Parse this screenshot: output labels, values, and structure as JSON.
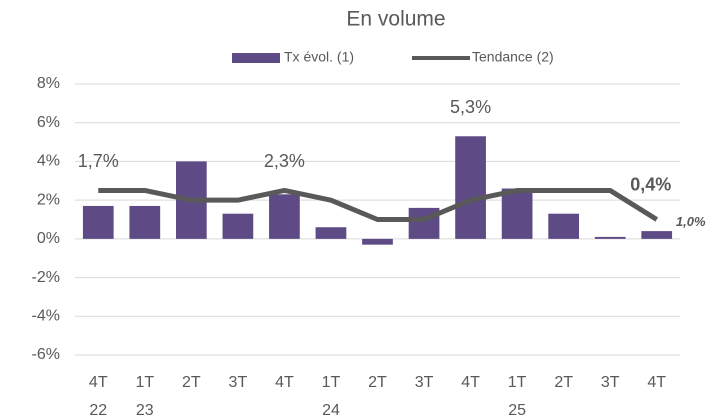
{
  "chart_data": {
    "type": "bar-line",
    "title": "En volume",
    "categories": [
      [
        "4T",
        "22"
      ],
      [
        "1T",
        "23"
      ],
      [
        "2T"
      ],
      [
        "3T"
      ],
      [
        "4T"
      ],
      [
        "1T",
        "24"
      ],
      [
        "2T"
      ],
      [
        "3T"
      ],
      [
        "4T"
      ],
      [
        "1T",
        "25"
      ],
      [
        "2T"
      ],
      [
        "3T"
      ],
      [
        "4T"
      ]
    ],
    "series": [
      {
        "name": "Tx évol. (1)",
        "type": "bar",
        "color": "#5e4a85",
        "values": [
          1.7,
          1.7,
          4.0,
          1.3,
          2.3,
          0.6,
          -0.3,
          1.6,
          5.3,
          2.6,
          1.3,
          0.1,
          0.4
        ],
        "value_labels": [
          "1,7%",
          null,
          null,
          null,
          "2,3%",
          null,
          null,
          null,
          "5,3%",
          null,
          null,
          null,
          "0,4%"
        ]
      },
      {
        "name": "Tendance (2)",
        "type": "line",
        "color": "#595959",
        "values": [
          2.5,
          2.5,
          2.0,
          2.0,
          2.5,
          2.0,
          1.0,
          1.0,
          2.0,
          2.5,
          2.5,
          2.5,
          1.0
        ],
        "value_labels": [
          null,
          null,
          null,
          null,
          null,
          null,
          null,
          null,
          null,
          null,
          null,
          null,
          "1,0%"
        ]
      }
    ],
    "ylim": [
      -6,
      8
    ],
    "yticks": [
      {
        "value": -6,
        "label": "-6%"
      },
      {
        "value": -4,
        "label": "-4%"
      },
      {
        "value": -2,
        "label": "-2%"
      },
      {
        "value": 0,
        "label": "0%"
      },
      {
        "value": 2,
        "label": "2%"
      },
      {
        "value": 4,
        "label": "4%"
      },
      {
        "value": 6,
        "label": "6%"
      },
      {
        "value": 8,
        "label": "8%"
      }
    ],
    "grid": true,
    "legend": "top"
  }
}
